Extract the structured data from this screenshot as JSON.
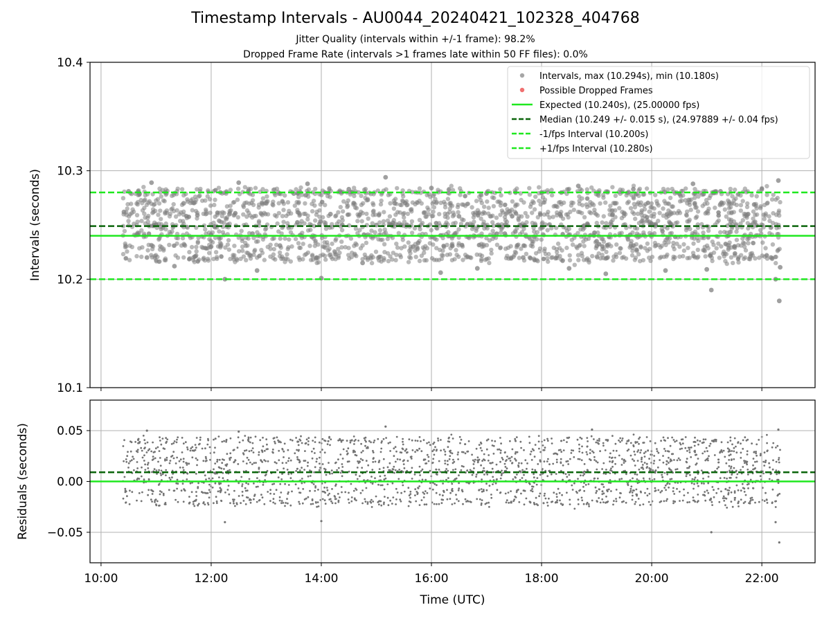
{
  "chart_data": [
    {
      "type": "scatter",
      "title": "Timestamp Intervals - AU0044_20240421_102328_404768",
      "subtitles": [
        "Jitter Quality (intervals within +/-1 frame): 98.2%",
        "Dropped Frame Rate (intervals >1 frames late within 50 FF files): 0.0%"
      ],
      "xlabel": "",
      "ylabel": "Intervals (seconds)",
      "xlim": [
        "09:48",
        "22:58"
      ],
      "ylim": [
        10.1,
        10.4
      ],
      "yticks": [
        "10.1",
        "10.2",
        "10.3",
        "10.4"
      ],
      "grid": true,
      "legend_position": "top-right",
      "legend": [
        {
          "label": "Intervals, max (10.294s), min (10.180s)",
          "color": "#a6a6a6",
          "marker": "point"
        },
        {
          "label": "Possible Dropped Frames",
          "color": "#f07070",
          "marker": "point"
        },
        {
          "label": "Expected (10.240s), (25.00000 fps)",
          "color": "#1ee81e",
          "marker": "solid"
        },
        {
          "label": "Median (10.249 +/- 0.015 s), (24.97889 +/- 0.04 fps)",
          "color": "#0a640a",
          "marker": "dashed"
        },
        {
          "label": "-1/fps Interval (10.200s)",
          "color": "#1ee81e",
          "marker": "dashed"
        },
        {
          "label": "+1/fps Interval (10.280s)",
          "color": "#1ee81e",
          "marker": "dashed"
        }
      ],
      "reference_lines": [
        {
          "name": "Expected",
          "y": 10.24,
          "style": "solid",
          "color": "#1ee81e"
        },
        {
          "name": "Median",
          "y": 10.249,
          "style": "dashed",
          "color": "#0a640a"
        },
        {
          "name": "-1/fps Interval",
          "y": 10.2,
          "style": "dashed",
          "color": "#1ee81e"
        },
        {
          "name": "+1/fps Interval",
          "y": 10.28,
          "style": "dashed",
          "color": "#1ee81e"
        }
      ],
      "series": [
        {
          "name": "Intervals",
          "color": "#808080",
          "time_range": [
            "10:24",
            "22:20"
          ],
          "density_description_values": [
            10.22,
            10.23,
            10.24,
            10.25,
            10.26,
            10.27,
            10.28
          ],
          "points": [
            [
              "10:25",
              10.262
            ],
            [
              "10:30",
              10.281
            ],
            [
              "10:40",
              10.241
            ],
            [
              "10:50",
              10.22
            ],
            [
              "10:55",
              10.289
            ],
            [
              "11:00",
              10.25
            ],
            [
              "11:10",
              10.28
            ],
            [
              "11:20",
              10.212
            ],
            [
              "11:30",
              10.27
            ],
            [
              "11:45",
              10.259
            ],
            [
              "12:00",
              10.23
            ],
            [
              "12:10",
              10.28
            ],
            [
              "12:15",
              10.2
            ],
            [
              "12:20",
              10.26
            ],
            [
              "12:30",
              10.289
            ],
            [
              "12:45",
              10.242
            ],
            [
              "12:50",
              10.208
            ],
            [
              "13:00",
              10.27
            ],
            [
              "13:15",
              10.231
            ],
            [
              "13:30",
              10.279
            ],
            [
              "13:45",
              10.288
            ],
            [
              "13:55",
              10.22
            ],
            [
              "14:00",
              10.201
            ],
            [
              "14:10",
              10.26
            ],
            [
              "14:30",
              10.283
            ],
            [
              "14:45",
              10.215
            ],
            [
              "15:00",
              10.25
            ],
            [
              "15:10",
              10.294
            ],
            [
              "15:20",
              10.27
            ],
            [
              "15:40",
              10.23
            ],
            [
              "16:00",
              10.284
            ],
            [
              "16:10",
              10.206
            ],
            [
              "16:30",
              10.258
            ],
            [
              "16:50",
              10.21
            ],
            [
              "17:00",
              10.279
            ],
            [
              "17:20",
              10.242
            ],
            [
              "17:40",
              10.22
            ],
            [
              "18:00",
              10.28
            ],
            [
              "18:20",
              10.26
            ],
            [
              "18:30",
              10.21
            ],
            [
              "18:40",
              10.286
            ],
            [
              "19:00",
              10.235
            ],
            [
              "19:10",
              10.205
            ],
            [
              "19:20",
              10.27
            ],
            [
              "19:40",
              10.283
            ],
            [
              "20:00",
              10.25
            ],
            [
              "20:15",
              10.208
            ],
            [
              "20:30",
              10.279
            ],
            [
              "20:45",
              10.288
            ],
            [
              "21:00",
              10.209
            ],
            [
              "21:05",
              10.19
            ],
            [
              "21:15",
              10.281
            ],
            [
              "21:30",
              10.23
            ],
            [
              "21:45",
              10.26
            ],
            [
              "22:00",
              10.283
            ],
            [
              "22:10",
              10.22
            ],
            [
              "22:15",
              10.2
            ],
            [
              "22:18",
              10.291
            ],
            [
              "22:19",
              10.18
            ],
            [
              "22:20",
              10.211
            ]
          ]
        }
      ]
    },
    {
      "type": "scatter",
      "xlabel": "Time (UTC)",
      "ylabel": "Residuals (seconds)",
      "xlim": [
        "09:48",
        "22:58"
      ],
      "ylim": [
        -0.08,
        0.08
      ],
      "xticks": [
        "10:00",
        "12:00",
        "14:00",
        "16:00",
        "18:00",
        "20:00",
        "22:00"
      ],
      "yticks": [
        "−0.05",
        "0.00",
        "0.05"
      ],
      "grid": true,
      "reference_lines": [
        {
          "name": "Expected",
          "y": 0.0,
          "style": "solid",
          "color": "#1ee81e"
        },
        {
          "name": "Median",
          "y": 0.009,
          "style": "dashed",
          "color": "#0a640a"
        }
      ],
      "series": [
        {
          "name": "Residuals",
          "color": "#737373",
          "time_range": [
            "10:24",
            "22:20"
          ],
          "points": [
            [
              "10:50",
              0.05
            ],
            [
              "12:15",
              -0.04
            ],
            [
              "12:30",
              0.049
            ],
            [
              "14:00",
              -0.039
            ],
            [
              "15:10",
              0.054
            ],
            [
              "18:55",
              0.051
            ],
            [
              "21:05",
              -0.05
            ],
            [
              "22:15",
              -0.04
            ],
            [
              "22:18",
              0.051
            ],
            [
              "22:19",
              -0.06
            ]
          ]
        }
      ]
    }
  ]
}
